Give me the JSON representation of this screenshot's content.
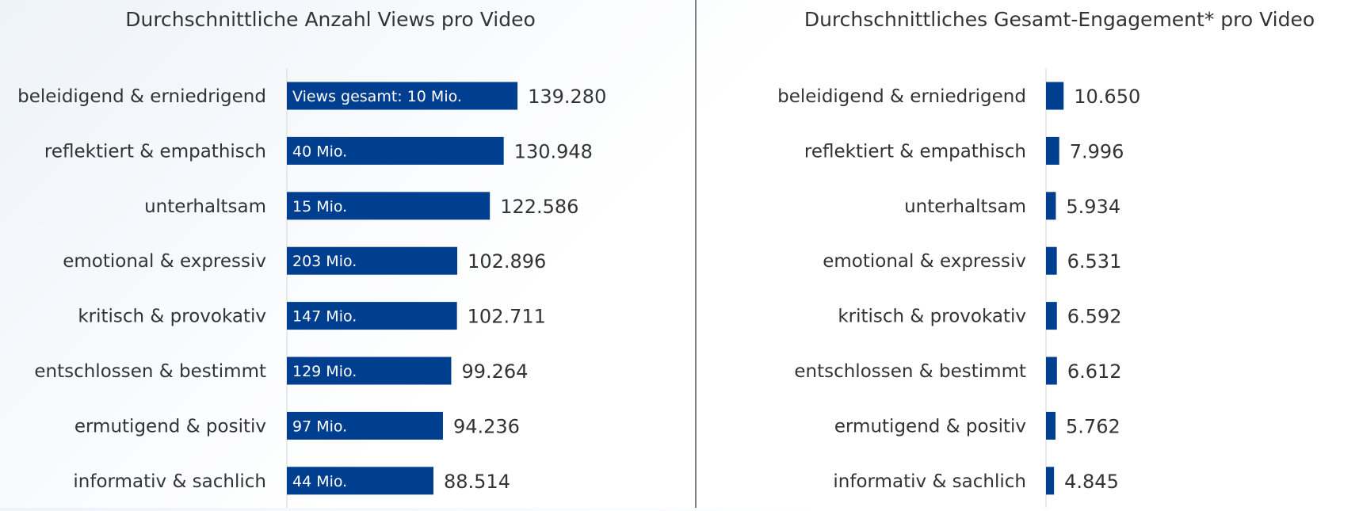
{
  "colors": {
    "bar": "#003f8f",
    "text": "#333333",
    "bar_label": "#ffffff",
    "axis": "#e2e2e2",
    "divider": "#555555"
  },
  "chart_data": [
    {
      "type": "bar",
      "orientation": "horizontal",
      "title": "Durchschnittliche Anzahl Views pro Video",
      "xlabel": "",
      "ylabel": "",
      "xlim": [
        0,
        145000
      ],
      "grid": false,
      "categories": [
        "beleidigend & erniedrigend",
        "reflektiert & empathisch",
        "unterhaltsam",
        "emotional & expressiv",
        "kritisch & provokativ",
        "entschlossen & bestimmt",
        "ermutigend & positiv",
        "informativ & sachlich"
      ],
      "values": [
        139280,
        130948,
        122586,
        102896,
        102711,
        99264,
        94236,
        88514
      ],
      "value_labels": [
        "139.280",
        "130.948",
        "122.586",
        "102.896",
        "102.711",
        "99.264",
        "94.236",
        "88.514"
      ],
      "bar_labels": [
        "Views gesamt: 10 Mio.",
        "40 Mio.",
        "15 Mio.",
        "203 Mio.",
        "147 Mio.",
        "129 Mio.",
        "97 Mio.",
        "44 Mio."
      ]
    },
    {
      "type": "bar",
      "orientation": "horizontal",
      "title": "Durchschnittliches Gesamt-Engagement* pro Video",
      "xlabel": "",
      "ylabel": "",
      "xlim": [
        0,
        145000
      ],
      "grid": false,
      "categories": [
        "beleidigend & erniedrigend",
        "reflektiert & empathisch",
        "unterhaltsam",
        "emotional & expressiv",
        "kritisch & provokativ",
        "entschlossen & bestimmt",
        "ermutigend & positiv",
        "informativ & sachlich"
      ],
      "values": [
        10650,
        7996,
        5934,
        6531,
        6592,
        6612,
        5762,
        4845
      ],
      "value_labels": [
        "10.650",
        "7.996",
        "5.934",
        "6.531",
        "6.592",
        "6.612",
        "5.762",
        "4.845"
      ]
    }
  ]
}
